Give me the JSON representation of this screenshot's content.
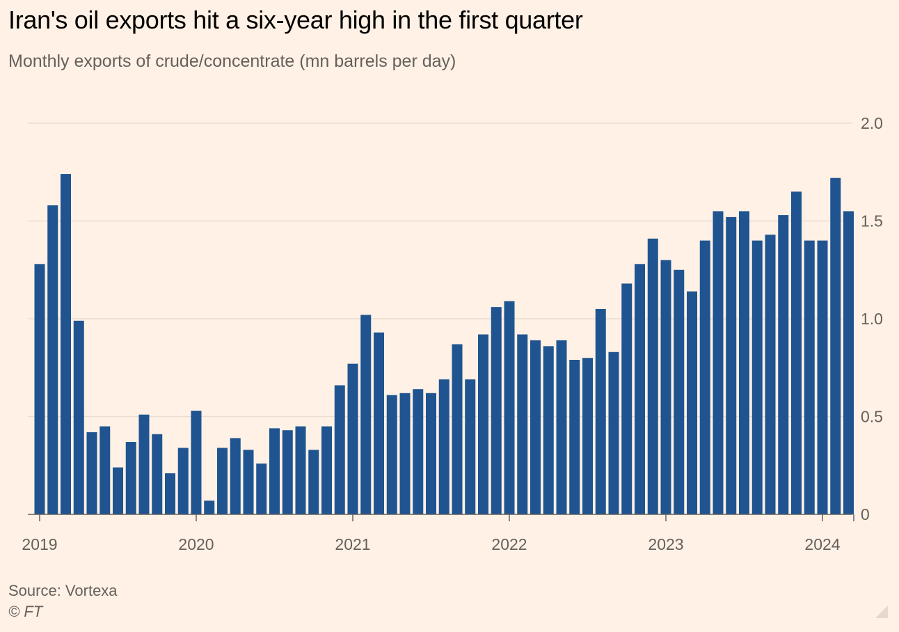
{
  "title": "Iran's oil exports hit a six-year high in the first quarter",
  "subtitle": "Monthly exports of crude/concentrate (mn barrels per day)",
  "source": "Source: Vortexa",
  "credit": "© FT",
  "colors": {
    "bar": "#1f5490",
    "background": "#fff1e5",
    "grid": "#e9ddd2",
    "axis": "#66605c"
  },
  "chart_data": {
    "type": "bar",
    "title": "Iran's oil exports hit a six-year high in the first quarter",
    "subtitle": "Monthly exports of crude/concentrate (mn barrels per day)",
    "x_start": "2019-01",
    "x_end": "2024-03",
    "x_ticks": [
      "2019",
      "2020",
      "2021",
      "2022",
      "2023",
      "2024"
    ],
    "y_ticks": [
      "0",
      "0.5",
      "1.0",
      "1.5",
      "2.0"
    ],
    "y_tick_values": [
      0,
      0.5,
      1.0,
      1.5,
      2.0
    ],
    "ylim": [
      0,
      2.0
    ],
    "y_axis_side": "right",
    "grid": true,
    "values": [
      1.28,
      1.58,
      1.74,
      0.99,
      0.42,
      0.45,
      0.24,
      0.37,
      0.51,
      0.41,
      0.21,
      0.34,
      0.53,
      0.07,
      0.34,
      0.39,
      0.33,
      0.26,
      0.44,
      0.43,
      0.45,
      0.33,
      0.45,
      0.66,
      0.77,
      1.02,
      0.93,
      0.61,
      0.62,
      0.64,
      0.62,
      0.69,
      0.87,
      0.69,
      0.92,
      1.06,
      1.09,
      0.92,
      0.89,
      0.86,
      0.89,
      0.79,
      0.8,
      1.05,
      0.83,
      1.18,
      1.28,
      1.41,
      1.3,
      1.25,
      1.14,
      1.4,
      1.55,
      1.52,
      1.55,
      1.4,
      1.43,
      1.53,
      1.65,
      1.4,
      1.4,
      1.72,
      1.55
    ]
  }
}
